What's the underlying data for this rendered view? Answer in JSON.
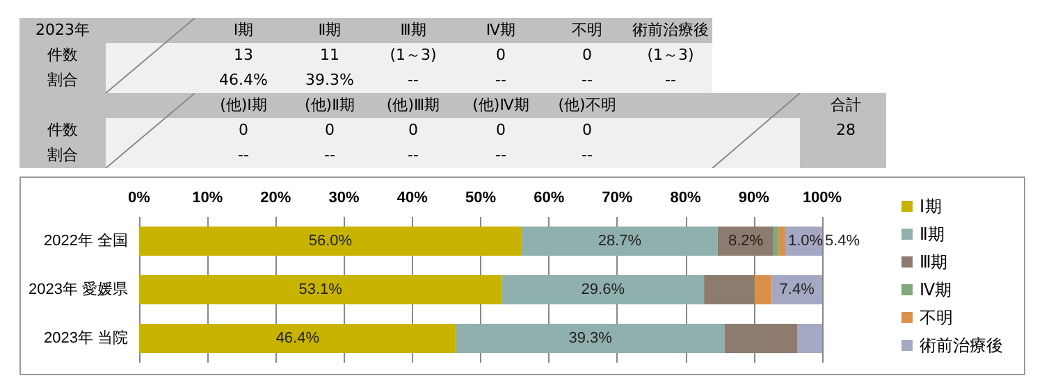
{
  "chart_data": {
    "type": "bar",
    "orientation": "horizontal",
    "stacked": true,
    "categories": [
      "2022年 全国",
      "2023年 愛媛県",
      "2023年 当院"
    ],
    "series": [
      {
        "name": "Ⅰ期",
        "color": "#c8b400",
        "values": [
          56.0,
          53.1,
          46.4
        ],
        "value_labels": [
          "56.0%",
          "53.1%",
          "46.4%"
        ]
      },
      {
        "name": "Ⅱ期",
        "color": "#8fb0ac",
        "values": [
          28.7,
          29.6,
          39.3
        ],
        "value_labels": [
          "28.7%",
          "29.6%",
          "39.3%"
        ]
      },
      {
        "name": "Ⅲ期",
        "color": "#8c7b6e",
        "values": [
          8.2,
          7.4,
          10.7
        ],
        "value_labels": [
          "8.2%",
          null,
          null
        ]
      },
      {
        "name": "Ⅳ期",
        "color": "#7fa97a",
        "values": [
          0.7,
          0,
          0
        ],
        "value_labels": [
          null,
          null,
          null
        ]
      },
      {
        "name": "不明",
        "color": "#d9914a",
        "values": [
          1.0,
          2.5,
          0
        ],
        "value_labels": [
          "1.0%",
          null,
          null
        ]
      },
      {
        "name": "術前治療後",
        "color": "#a5a8c3",
        "values": [
          5.4,
          7.4,
          3.6
        ],
        "value_labels": [
          "5.4%",
          "7.4%",
          null
        ]
      }
    ],
    "xlim": [
      0,
      100
    ],
    "xticks": [
      {
        "value": 0,
        "label": "0%"
      },
      {
        "value": 10,
        "label": "10%"
      },
      {
        "value": 20,
        "label": "20%"
      },
      {
        "value": 30,
        "label": "30%"
      },
      {
        "value": 40,
        "label": "40%"
      },
      {
        "value": 50,
        "label": "50%"
      },
      {
        "value": 60,
        "label": "60%"
      },
      {
        "value": 70,
        "label": "70%"
      },
      {
        "value": 80,
        "label": "80%"
      },
      {
        "value": 90,
        "label": "90%"
      },
      {
        "value": 100,
        "label": "100%"
      }
    ],
    "grid": "x",
    "legend": "right",
    "annotations": [
      "2023年",
      "Ⅰ期",
      "Ⅱ期",
      "Ⅲ期",
      "Ⅳ期",
      "不明",
      "術前治療後",
      "件数",
      "13",
      "11",
      "(1～3)",
      "0",
      "0",
      "(1～3)",
      "割合",
      "46.4%",
      "39.3%",
      "--",
      "--",
      "--",
      "--",
      "(他)Ⅰ期",
      "(他)Ⅱ期",
      "(他)Ⅲ期",
      "(他)Ⅳ期",
      "(他)不明",
      "合計",
      "件数",
      "0",
      "0",
      "0",
      "0",
      "0",
      "28",
      "割合",
      "--",
      "--",
      "--",
      "--",
      "--"
    ]
  }
}
